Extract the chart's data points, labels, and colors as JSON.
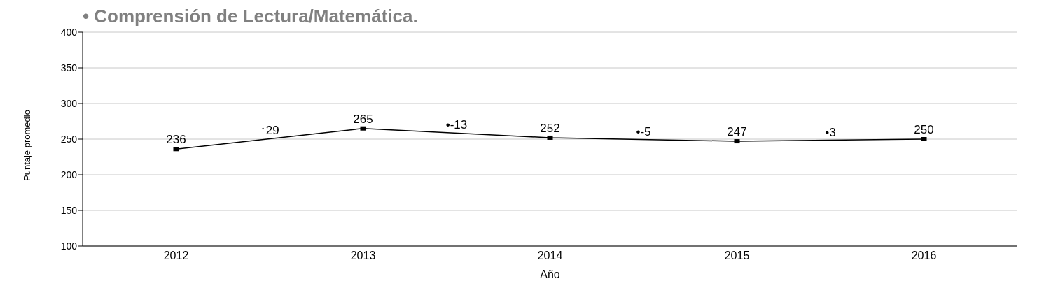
{
  "chart_data": {
    "type": "line",
    "title": "• Comprensión de Lectura/Matemática.",
    "xlabel": "Año",
    "ylabel": "Puntaje promedio",
    "categories": [
      "2012",
      "2013",
      "2014",
      "2015",
      "2016"
    ],
    "series": [
      {
        "color": "#000000",
        "values": [
          236,
          265,
          252,
          247,
          250
        ]
      }
    ],
    "data_labels": true,
    "marker": "square",
    "line_style": "solid",
    "annotations": [
      "↑29",
      "•-13",
      "•-5",
      "•3"
    ],
    "ylim": [
      100,
      400
    ],
    "yticks": [
      100,
      150,
      200,
      250,
      300,
      350,
      400
    ],
    "grid": "y",
    "legend": false
  }
}
